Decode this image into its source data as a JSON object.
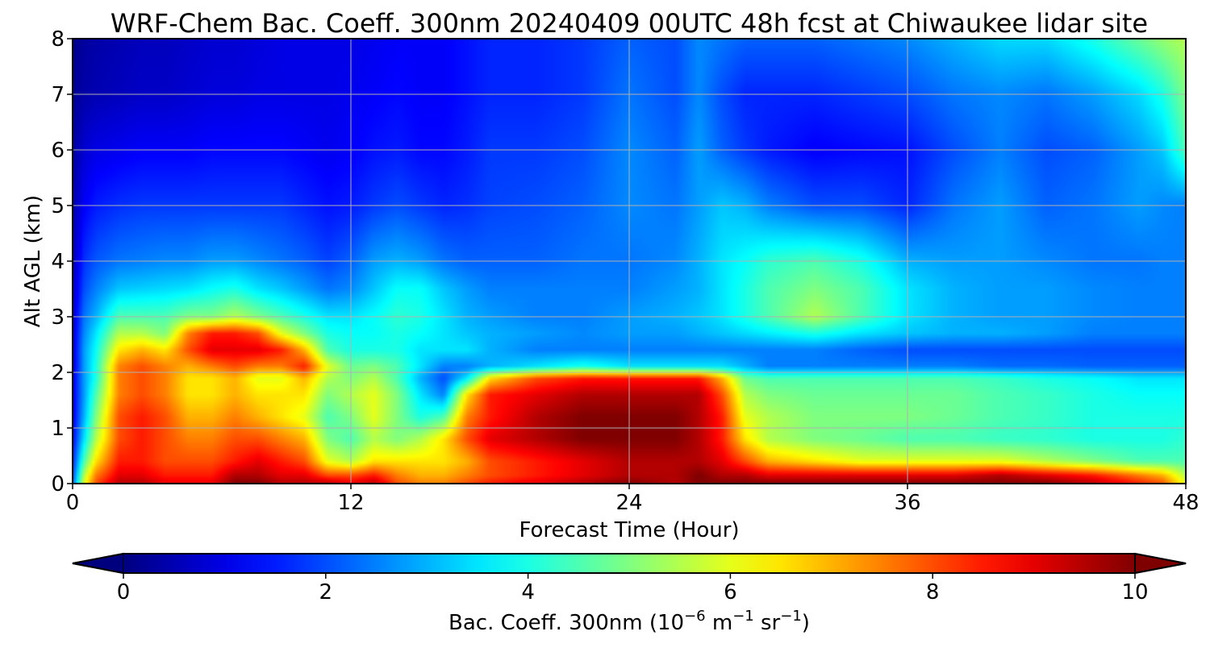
{
  "chart_data": {
    "type": "heatmap",
    "title": "WRF-Chem Bac. Coeff. 300nm  20240409 00UTC 48h fcst at Chiwaukee lidar site",
    "xlabel": "Forecast Time (Hour)",
    "ylabel": "Alt AGL (km)",
    "xlim": [
      0,
      48
    ],
    "ylim": [
      0,
      8
    ],
    "x_ticks": [
      0,
      12,
      24,
      36,
      48
    ],
    "y_ticks": [
      0,
      1,
      2,
      3,
      4,
      5,
      6,
      7,
      8
    ],
    "grid": true,
    "colormap": "jet",
    "colorbar": {
      "label_main": "Bac. Coeff. 300nm  (10",
      "label_exp1": "−6",
      "label_mid": " m",
      "label_exp2": "−1",
      "label_mid2": " sr",
      "label_exp3": "−1",
      "label_end": ")",
      "range": [
        0,
        10
      ],
      "ticks": [
        0,
        2,
        4,
        6,
        8,
        10
      ],
      "extend": "both",
      "orientation": "horizontal"
    },
    "x": [
      0,
      0.5,
      1,
      2,
      3,
      4,
      5,
      6,
      7,
      8,
      9,
      10,
      11,
      12,
      13,
      14,
      15,
      16,
      17,
      18,
      20,
      22,
      24,
      26,
      27,
      28,
      29,
      30,
      32,
      34,
      36,
      38,
      40,
      42,
      44,
      46,
      47,
      48
    ],
    "y": [
      0,
      0.15,
      0.4,
      0.8,
      1.2,
      1.6,
      1.9,
      2.1,
      2.4,
      2.7,
      3.0,
      3.5,
      4.0,
      5.0,
      6.0,
      7.0,
      8.0
    ],
    "z": [
      [
        2.0,
        6.0,
        8.0,
        9.5,
        9.5,
        9.0,
        9.0,
        9.0,
        10.0,
        10.0,
        9.5,
        9.5,
        9.5,
        9.0,
        9.5,
        8.0,
        7.5,
        7.5,
        8.0,
        8.5,
        9.0,
        9.5,
        10.0,
        9.5,
        10.0,
        10.0,
        10.0,
        10.0,
        10.0,
        10.0,
        10.0,
        10.0,
        10.0,
        10.0,
        9.5,
        8.5,
        8.0,
        6.0
      ],
      [
        1.8,
        5.5,
        7.5,
        9.0,
        9.0,
        8.5,
        8.5,
        8.5,
        9.5,
        9.5,
        9.0,
        9.0,
        8.0,
        8.0,
        8.5,
        7.5,
        7.0,
        7.0,
        7.5,
        8.0,
        8.5,
        9.0,
        9.5,
        9.5,
        10.0,
        9.5,
        9.5,
        9.0,
        9.0,
        9.0,
        9.0,
        9.0,
        9.5,
        9.0,
        8.5,
        7.5,
        7.0,
        5.5
      ],
      [
        1.5,
        4.5,
        6.5,
        8.5,
        8.5,
        8.0,
        8.0,
        8.0,
        8.5,
        9.0,
        8.5,
        8.0,
        6.0,
        5.5,
        6.5,
        6.5,
        6.5,
        6.5,
        7.0,
        8.0,
        8.5,
        9.0,
        9.5,
        9.5,
        9.5,
        9.0,
        8.0,
        7.0,
        6.5,
        6.0,
        6.0,
        6.0,
        6.0,
        5.5,
        5.0,
        4.5,
        4.5,
        4.5
      ],
      [
        1.2,
        3.5,
        5.5,
        8.0,
        8.5,
        8.0,
        7.5,
        7.5,
        8.0,
        8.0,
        7.5,
        7.0,
        5.0,
        4.5,
        5.5,
        5.0,
        5.5,
        6.5,
        8.0,
        9.0,
        9.5,
        10.0,
        10.0,
        10.0,
        9.5,
        8.5,
        6.5,
        5.5,
        5.0,
        4.8,
        4.5,
        4.5,
        4.3,
        4.2,
        4.0,
        4.0,
        4.0,
        4.2
      ],
      [
        1.0,
        3.0,
        5.0,
        8.0,
        8.5,
        8.0,
        7.0,
        7.0,
        7.5,
        7.0,
        6.5,
        6.0,
        4.5,
        5.0,
        6.0,
        5.0,
        4.0,
        4.5,
        7.5,
        8.5,
        9.5,
        10.0,
        10.0,
        10.0,
        9.5,
        8.5,
        6.0,
        5.5,
        5.0,
        5.0,
        5.0,
        4.8,
        4.5,
        4.3,
        4.0,
        4.0,
        4.0,
        4.0
      ],
      [
        1.0,
        2.8,
        4.5,
        7.5,
        8.0,
        7.5,
        6.5,
        6.5,
        7.0,
        6.5,
        6.5,
        6.5,
        5.0,
        5.5,
        6.0,
        5.0,
        3.5,
        2.5,
        6.5,
        8.5,
        9.0,
        9.5,
        9.5,
        9.5,
        9.5,
        8.0,
        5.5,
        5.0,
        4.8,
        4.8,
        4.8,
        4.8,
        4.5,
        4.3,
        4.0,
        3.8,
        3.8,
        3.8
      ],
      [
        1.0,
        2.8,
        4.0,
        7.5,
        8.0,
        7.5,
        6.5,
        6.5,
        7.0,
        6.0,
        6.0,
        7.0,
        5.5,
        5.0,
        5.5,
        4.5,
        3.0,
        2.0,
        3.5,
        6.5,
        8.0,
        8.5,
        8.5,
        8.5,
        8.5,
        7.0,
        4.8,
        4.5,
        4.5,
        4.5,
        4.5,
        4.5,
        4.3,
        4.0,
        3.8,
        3.5,
        3.5,
        3.5
      ],
      [
        0.8,
        2.8,
        4.0,
        7.5,
        8.0,
        7.5,
        7.0,
        7.5,
        8.0,
        7.5,
        7.5,
        8.5,
        6.0,
        4.8,
        5.0,
        4.5,
        3.5,
        2.5,
        2.5,
        3.0,
        3.5,
        4.0,
        3.5,
        3.5,
        3.5,
        3.5,
        3.0,
        2.5,
        2.5,
        2.5,
        2.5,
        2.5,
        2.3,
        2.3,
        2.2,
        2.2,
        2.2,
        2.2
      ],
      [
        0.8,
        2.8,
        3.8,
        6.5,
        7.0,
        6.5,
        8.0,
        9.0,
        9.0,
        9.0,
        8.5,
        7.0,
        4.5,
        4.0,
        4.0,
        4.0,
        3.5,
        3.5,
        3.5,
        3.0,
        2.5,
        2.5,
        2.5,
        2.5,
        2.5,
        2.5,
        2.5,
        2.5,
        2.5,
        2.2,
        2.0,
        2.0,
        2.0,
        2.0,
        2.0,
        2.0,
        2.0,
        2.0
      ],
      [
        0.8,
        2.6,
        3.5,
        5.5,
        5.5,
        5.0,
        7.5,
        8.5,
        8.5,
        8.0,
        6.0,
        5.0,
        4.0,
        3.8,
        3.8,
        4.0,
        3.8,
        3.5,
        3.2,
        3.0,
        2.8,
        2.6,
        2.8,
        2.8,
        3.0,
        3.2,
        3.4,
        3.6,
        4.0,
        3.5,
        3.2,
        3.0,
        3.0,
        2.8,
        2.5,
        2.5,
        2.5,
        2.5
      ],
      [
        0.7,
        2.4,
        3.0,
        4.5,
        4.5,
        4.5,
        5.0,
        5.0,
        5.5,
        5.0,
        4.5,
        4.0,
        3.5,
        3.5,
        3.8,
        4.2,
        4.0,
        3.5,
        3.0,
        2.8,
        2.5,
        2.5,
        2.8,
        3.0,
        3.2,
        3.5,
        4.0,
        4.5,
        5.5,
        4.5,
        3.5,
        3.0,
        2.8,
        2.8,
        2.6,
        2.5,
        2.5,
        2.5
      ],
      [
        0.6,
        2.0,
        2.5,
        3.2,
        3.3,
        3.4,
        3.5,
        3.8,
        4.0,
        3.5,
        3.2,
        2.8,
        2.4,
        2.6,
        3.2,
        3.8,
        3.8,
        3.2,
        2.8,
        2.5,
        2.5,
        2.5,
        2.5,
        2.8,
        3.0,
        3.5,
        4.0,
        4.5,
        5.0,
        4.5,
        3.5,
        3.0,
        2.8,
        2.8,
        2.6,
        2.5,
        2.5,
        2.5
      ],
      [
        0.5,
        1.7,
        2.1,
        2.4,
        2.5,
        2.6,
        2.6,
        2.8,
        2.8,
        2.6,
        2.4,
        2.2,
        1.9,
        2.2,
        2.8,
        3.0,
        2.8,
        2.4,
        2.2,
        2.2,
        2.2,
        2.4,
        2.4,
        2.6,
        3.0,
        3.5,
        3.8,
        4.2,
        4.5,
        4.0,
        3.0,
        2.8,
        2.8,
        2.6,
        2.4,
        2.4,
        2.5,
        2.5
      ],
      [
        0.4,
        1.2,
        1.5,
        1.7,
        1.8,
        1.8,
        1.8,
        1.8,
        1.8,
        1.8,
        1.8,
        1.6,
        1.4,
        1.5,
        1.8,
        2.0,
        1.8,
        1.6,
        1.7,
        1.9,
        2.0,
        2.2,
        2.6,
        2.4,
        2.8,
        3.2,
        3.0,
        2.5,
        2.0,
        2.0,
        1.6,
        2.4,
        2.8,
        2.2,
        2.4,
        2.8,
        2.6,
        2.5
      ],
      [
        0.3,
        0.8,
        1.0,
        1.1,
        1.2,
        1.2,
        1.2,
        1.3,
        1.3,
        1.3,
        1.3,
        1.2,
        1.1,
        1.2,
        1.4,
        1.5,
        1.3,
        1.3,
        1.5,
        1.8,
        1.8,
        2.0,
        2.6,
        2.2,
        2.8,
        2.2,
        1.8,
        1.5,
        1.2,
        1.3,
        1.4,
        2.0,
        2.5,
        2.0,
        2.2,
        2.8,
        3.2,
        4.5
      ],
      [
        0.2,
        0.4,
        0.5,
        0.6,
        0.7,
        0.7,
        0.8,
        0.9,
        0.9,
        1.0,
        1.0,
        1.0,
        1.0,
        1.1,
        1.2,
        1.3,
        1.2,
        1.2,
        1.4,
        1.6,
        1.6,
        1.8,
        2.4,
        2.0,
        2.6,
        2.0,
        1.6,
        1.6,
        1.6,
        1.8,
        2.0,
        2.4,
        2.6,
        2.4,
        2.8,
        3.4,
        4.0,
        5.0
      ],
      [
        0.1,
        0.3,
        0.4,
        0.5,
        0.6,
        0.6,
        0.7,
        0.8,
        0.8,
        0.9,
        1.0,
        1.0,
        1.0,
        1.0,
        1.1,
        1.2,
        1.2,
        1.2,
        1.4,
        1.6,
        1.6,
        1.8,
        2.2,
        2.0,
        2.6,
        2.4,
        2.2,
        2.2,
        2.2,
        2.4,
        2.6,
        3.0,
        3.4,
        3.4,
        4.0,
        4.8,
        5.2,
        5.5
      ]
    ]
  }
}
